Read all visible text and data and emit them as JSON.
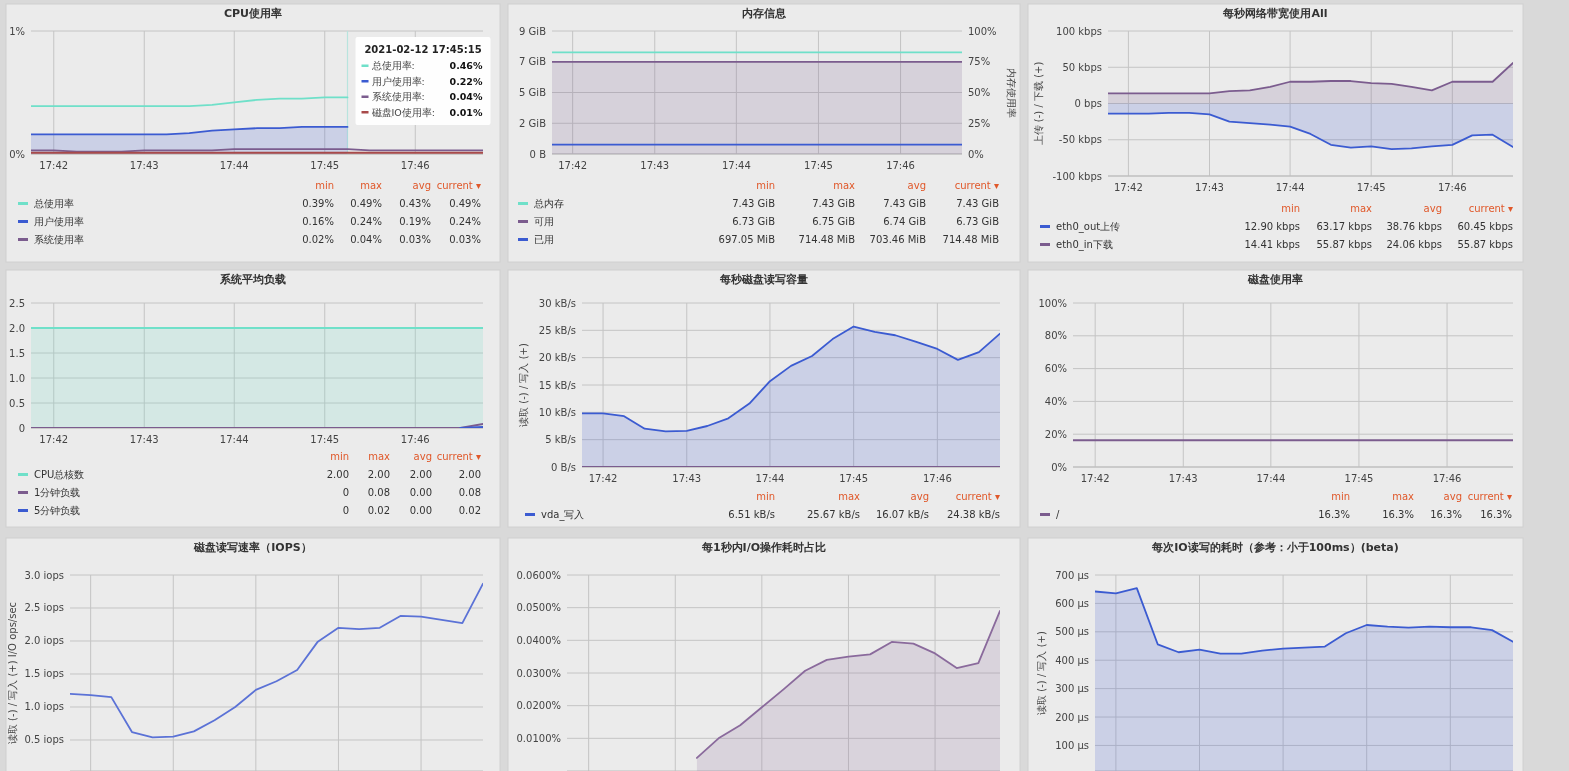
{
  "chart_data": [
    {
      "type": "line",
      "title": "CPU使用率",
      "legend": "bottom",
      "grid": true,
      "x": [
        17.6958,
        17.7,
        17.7042,
        17.7083,
        17.7125,
        17.7167,
        17.7208,
        17.725,
        17.7292,
        17.7333,
        17.7375,
        17.7417,
        17.7458,
        17.75,
        17.7542,
        17.7583,
        17.7625,
        17.7667,
        17.7708,
        17.775,
        17.7792
      ],
      "xlim": [
        17.6958,
        17.7792
      ],
      "xticks": [
        {
          "value": 17.7,
          "label": "17:42"
        },
        {
          "value": 17.7167,
          "label": "17:43"
        },
        {
          "value": 17.7333,
          "label": "17:44"
        },
        {
          "value": 17.75,
          "label": "17:45"
        },
        {
          "value": 17.7667,
          "label": "17:46"
        }
      ],
      "ylim": [
        0,
        1
      ],
      "yticks": [
        {
          "value": 0,
          "label": "0%"
        },
        {
          "value": 1,
          "label": "1%"
        }
      ],
      "ref_lines": [
        {
          "axis": "x",
          "value": 17.7542,
          "color": "#b8e4de"
        }
      ],
      "series": [
        {
          "name": "总使用率",
          "color": "#6fe0c9",
          "values": [
            0.39,
            0.39,
            0.39,
            0.39,
            0.39,
            0.39,
            0.39,
            0.39,
            0.4,
            0.42,
            0.44,
            0.45,
            0.45,
            0.46,
            0.46,
            null,
            null,
            null,
            null,
            null,
            null
          ]
        },
        {
          "name": "用户使用率",
          "type": "area",
          "color": "#3b5bd1",
          "values": [
            0.16,
            0.16,
            0.16,
            0.16,
            0.16,
            0.16,
            0.16,
            0.17,
            0.19,
            0.2,
            0.21,
            0.21,
            0.22,
            0.22,
            0.22,
            null,
            null,
            null,
            null,
            null,
            null
          ]
        },
        {
          "name": "系统使用率",
          "color": "#7b5c8e",
          "values": [
            0.03,
            0.03,
            0.02,
            0.02,
            0.02,
            0.03,
            0.03,
            0.03,
            0.03,
            0.04,
            0.04,
            0.04,
            0.04,
            0.04,
            0.04,
            0.03,
            0.03,
            0.03,
            0.03,
            0.03,
            0.03
          ]
        },
        {
          "color": "#a84a4a",
          "values": [
            0.01,
            0.01,
            0.01,
            0.01,
            0.01,
            0.01,
            0.01,
            0.01,
            0.01,
            0.01,
            0.01,
            0.01,
            0.01,
            0.01,
            0.01,
            0.01,
            0.01,
            0.01,
            0.01,
            0.01,
            0.01
          ]
        }
      ],
      "annotations": [
        "min",
        "max",
        "avg",
        "current ▾",
        "0.39%",
        "0.49%",
        "0.43%",
        "0.49%",
        "0.16%",
        "0.24%",
        "0.19%",
        "0.24%",
        "0.02%",
        "0.04%",
        "0.03%",
        "0.03%",
        "2021-02-12 17:45:15",
        "总使用率:",
        "0.46%",
        "用户使用率:",
        "0.22%",
        "系统使用率:",
        "0.04%",
        "磁盘IO使用率:",
        "0.01%"
      ]
    },
    {
      "type": "line",
      "title": "内存信息",
      "legend": "bottom",
      "grid": true,
      "y2label": "内存使用率",
      "x": [
        17.6958,
        17.7,
        17.7042,
        17.7083,
        17.7125,
        17.7167,
        17.7208,
        17.725,
        17.7292,
        17.7333,
        17.7375,
        17.7417,
        17.7458,
        17.75,
        17.7542,
        17.7583,
        17.7625,
        17.7667,
        17.7708,
        17.775,
        17.7792
      ],
      "xlim": [
        17.6958,
        17.7792
      ],
      "xticks": [
        {
          "value": 17.7,
          "label": "17:42"
        },
        {
          "value": 17.7167,
          "label": "17:43"
        },
        {
          "value": 17.7333,
          "label": "17:44"
        },
        {
          "value": 17.75,
          "label": "17:45"
        },
        {
          "value": 17.7667,
          "label": "17:46"
        }
      ],
      "ylim": [
        0,
        9
      ],
      "yticks": [
        {
          "value": 0,
          "label": "0 B"
        },
        {
          "value": 2.25,
          "label": "2 GiB"
        },
        {
          "value": 4.5,
          "label": "5 GiB"
        },
        {
          "value": 6.75,
          "label": "7 GiB"
        },
        {
          "value": 9,
          "label": "9 GiB"
        }
      ],
      "y2lim": [
        0,
        100
      ],
      "y2ticks": [
        {
          "value": 0,
          "label": "0%"
        },
        {
          "value": 25,
          "label": "25%"
        },
        {
          "value": 50,
          "label": "50%"
        },
        {
          "value": 75,
          "label": "75%"
        },
        {
          "value": 100,
          "label": "100%"
        }
      ],
      "series": [
        {
          "name": "总内存",
          "color": "#6fe0c9",
          "values": [
            7.43,
            7.43,
            7.43,
            7.43,
            7.43,
            7.43,
            7.43,
            7.43,
            7.43,
            7.43,
            7.43,
            7.43,
            7.43,
            7.43,
            7.43,
            7.43,
            7.43,
            7.43,
            7.43,
            7.43,
            7.43
          ]
        },
        {
          "name": "可用",
          "type": "area",
          "color": "#7b5c8e",
          "values": [
            6.74,
            6.74,
            6.74,
            6.74,
            6.74,
            6.74,
            6.74,
            6.74,
            6.74,
            6.74,
            6.74,
            6.74,
            6.74,
            6.74,
            6.74,
            6.74,
            6.74,
            6.74,
            6.74,
            6.74,
            6.74
          ]
        },
        {
          "name": "已用",
          "color": "#3b5bd1",
          "values": [
            0.69,
            0.69,
            0.69,
            0.69,
            0.69,
            0.69,
            0.69,
            0.69,
            0.69,
            0.69,
            0.69,
            0.69,
            0.69,
            0.69,
            0.69,
            0.69,
            0.69,
            0.69,
            0.69,
            0.69,
            0.69
          ]
        }
      ],
      "annotations": [
        "min",
        "max",
        "avg",
        "current ▾",
        "7.43 GiB",
        "7.43 GiB",
        "7.43 GiB",
        "7.43 GiB",
        "6.73 GiB",
        "6.75 GiB",
        "6.74 GiB",
        "6.73 GiB",
        "697.05 MiB",
        "714.48 MiB",
        "703.46 MiB",
        "714.48 MiB"
      ]
    },
    {
      "type": "area",
      "title": "每秒网络带宽使用All",
      "legend": "bottom",
      "grid": true,
      "ylabel": "上传 (-) / 下载 (+)",
      "x": [
        17.6958,
        17.7,
        17.7042,
        17.7083,
        17.7125,
        17.7167,
        17.7208,
        17.725,
        17.7292,
        17.7333,
        17.7375,
        17.7417,
        17.7458,
        17.75,
        17.7542,
        17.7583,
        17.7625,
        17.7667,
        17.7708,
        17.775,
        17.7792
      ],
      "xlim": [
        17.6958,
        17.7792
      ],
      "xticks": [
        {
          "value": 17.7,
          "label": "17:42"
        },
        {
          "value": 17.7167,
          "label": "17:43"
        },
        {
          "value": 17.7333,
          "label": "17:44"
        },
        {
          "value": 17.75,
          "label": "17:45"
        },
        {
          "value": 17.7667,
          "label": "17:46"
        }
      ],
      "ylim": [
        -100,
        100
      ],
      "yticks": [
        {
          "value": -100,
          "label": "-100 kbps"
        },
        {
          "value": -50,
          "label": "-50 kbps"
        },
        {
          "value": 0,
          "label": "0 bps"
        },
        {
          "value": 50,
          "label": "50 kbps"
        },
        {
          "value": 100,
          "label": "100 kbps"
        }
      ],
      "series": [
        {
          "name": "eth0_out上传",
          "color": "#3b5bd1",
          "values": [
            -14,
            -14,
            -14,
            -13,
            -13,
            -15,
            -25,
            -27,
            -29,
            -32,
            -42,
            -57,
            -61,
            -59,
            -63,
            -62,
            -59,
            -57,
            -44,
            -43,
            -60
          ]
        },
        {
          "name": "eth0_in下载",
          "color": "#7b5c8e",
          "values": [
            14,
            14,
            14,
            14,
            14,
            14,
            17,
            18,
            23,
            30,
            30,
            31,
            31,
            28,
            27,
            23,
            18,
            30,
            30,
            30,
            56
          ]
        }
      ],
      "annotations": [
        "min",
        "max",
        "avg",
        "current ▾",
        "12.90 kbps",
        "63.17 kbps",
        "38.76 kbps",
        "60.45 kbps",
        "14.41 kbps",
        "55.87 kbps",
        "24.06 kbps",
        "55.87 kbps"
      ]
    },
    {
      "type": "line",
      "title": "系统平均负载",
      "legend": "bottom",
      "grid": true,
      "x": [
        17.6958,
        17.7,
        17.7042,
        17.7083,
        17.7125,
        17.7167,
        17.7208,
        17.725,
        17.7292,
        17.7333,
        17.7375,
        17.7417,
        17.7458,
        17.75,
        17.7542,
        17.7583,
        17.7625,
        17.7667,
        17.7708,
        17.775,
        17.7792
      ],
      "xlim": [
        17.6958,
        17.7792
      ],
      "xticks": [
        {
          "value": 17.7,
          "label": "17:42"
        },
        {
          "value": 17.7167,
          "label": "17:43"
        },
        {
          "value": 17.7333,
          "label": "17:44"
        },
        {
          "value": 17.75,
          "label": "17:45"
        },
        {
          "value": 17.7667,
          "label": "17:46"
        }
      ],
      "ylim": [
        0,
        2.5
      ],
      "yticks": [
        0,
        0.5,
        {
          "value": 1,
          "label": "1.0"
        },
        1.5,
        {
          "value": 2,
          "label": "2.0"
        },
        2.5
      ],
      "series": [
        {
          "name": "CPU总核数",
          "type": "area",
          "color": "#6fe0c9",
          "values": [
            2,
            2,
            2,
            2,
            2,
            2,
            2,
            2,
            2,
            2,
            2,
            2,
            2,
            2,
            2,
            2,
            2,
            2,
            2,
            2,
            2
          ]
        },
        {
          "name": "1分钟负载",
          "color": "#7b5c8e",
          "values": [
            0,
            0,
            0,
            0,
            0,
            0,
            0,
            0,
            0,
            0,
            0,
            0,
            0,
            0,
            0,
            0,
            0,
            0,
            0,
            0,
            0.08
          ]
        },
        {
          "name": "5分钟负载",
          "color": "#3b5bd1",
          "values": [
            null,
            null,
            null,
            null,
            null,
            null,
            null,
            null,
            null,
            null,
            null,
            null,
            null,
            null,
            null,
            null,
            null,
            null,
            null,
            0,
            0.02
          ]
        }
      ],
      "annotations": [
        "min",
        "max",
        "avg",
        "current ▾",
        "2.00",
        "2.00",
        "2.00",
        "2.00",
        "0",
        "0.08",
        "0.00",
        "0.08",
        "0",
        "0.02",
        "0.00",
        "0.02"
      ]
    },
    {
      "type": "line",
      "title": "每秒磁盘读写容量",
      "legend": "bottom",
      "grid": true,
      "ylabel": "读取 (-) / 写入 (+)",
      "x": [
        17.6958,
        17.7,
        17.7042,
        17.7083,
        17.7125,
        17.7167,
        17.7208,
        17.725,
        17.7292,
        17.7333,
        17.7375,
        17.7417,
        17.7458,
        17.75,
        17.7542,
        17.7583,
        17.7625,
        17.7667,
        17.7708,
        17.775,
        17.7792
      ],
      "xlim": [
        17.6958,
        17.7792
      ],
      "xticks": [
        {
          "value": 17.7,
          "label": "17:42"
        },
        {
          "value": 17.7167,
          "label": "17:43"
        },
        {
          "value": 17.7333,
          "label": "17:44"
        },
        {
          "value": 17.75,
          "label": "17:45"
        },
        {
          "value": 17.7667,
          "label": "17:46"
        }
      ],
      "ylim": [
        0,
        30
      ],
      "yticks": [
        {
          "value": 0,
          "label": "0 B/s"
        },
        {
          "value": 5,
          "label": "5 kB/s"
        },
        {
          "value": 10,
          "label": "10 kB/s"
        },
        {
          "value": 15,
          "label": "15 kB/s"
        },
        {
          "value": 20,
          "label": "20 kB/s"
        },
        {
          "value": 25,
          "label": "25 kB/s"
        },
        {
          "value": 30,
          "label": "30 kB/s"
        }
      ],
      "series": [
        {
          "name": "vda_写入",
          "type": "area",
          "color": "#3b5bd1",
          "values": [
            9.8,
            9.8,
            9.3,
            7.0,
            6.5,
            6.6,
            7.5,
            8.9,
            11.6,
            15.7,
            18.5,
            20.3,
            23.4,
            25.7,
            24.7,
            24.1,
            22.9,
            21.6,
            19.6,
            21.0,
            24.4
          ]
        },
        {
          "color": "#7b5c8e",
          "values": [
            0,
            0,
            0,
            0,
            0,
            0,
            0,
            0,
            0,
            0,
            0,
            0,
            0,
            0,
            0,
            0,
            0,
            0,
            0,
            0,
            0
          ]
        }
      ],
      "annotations": [
        "min",
        "max",
        "avg",
        "current ▾",
        "6.51 kB/s",
        "25.67 kB/s",
        "16.07 kB/s",
        "24.38 kB/s"
      ]
    },
    {
      "type": "line",
      "title": "磁盘使用率",
      "legend": "bottom",
      "grid": true,
      "x": [
        17.6958,
        17.7,
        17.7042,
        17.7083,
        17.7125,
        17.7167,
        17.7208,
        17.725,
        17.7292,
        17.7333,
        17.7375,
        17.7417,
        17.7458,
        17.75,
        17.7542,
        17.7583,
        17.7625,
        17.7667,
        17.7708,
        17.775,
        17.7792
      ],
      "xlim": [
        17.6958,
        17.7792
      ],
      "xticks": [
        {
          "value": 17.7,
          "label": "17:42"
        },
        {
          "value": 17.7167,
          "label": "17:43"
        },
        {
          "value": 17.7333,
          "label": "17:44"
        },
        {
          "value": 17.75,
          "label": "17:45"
        },
        {
          "value": 17.7667,
          "label": "17:46"
        }
      ],
      "ylim": [
        0,
        100
      ],
      "yticks": [
        {
          "value": 0,
          "label": "0%"
        },
        {
          "value": 20,
          "label": "20%"
        },
        {
          "value": 40,
          "label": "40%"
        },
        {
          "value": 60,
          "label": "60%"
        },
        {
          "value": 80,
          "label": "80%"
        },
        {
          "value": 100,
          "label": "100%"
        }
      ],
      "series": [
        {
          "name": "/",
          "color": "#7b5c8e",
          "values": [
            16.3,
            16.3,
            16.3,
            16.3,
            16.3,
            16.3,
            16.3,
            16.3,
            16.3,
            16.3,
            16.3,
            16.3,
            16.3,
            16.3,
            16.3,
            16.3,
            16.3,
            16.3,
            16.3,
            16.3,
            16.3
          ]
        }
      ],
      "annotations": [
        "min",
        "max",
        "avg",
        "current ▾",
        "16.3%",
        "16.3%",
        "16.3%",
        "16.3%"
      ]
    },
    {
      "type": "line",
      "title": "磁盘读写速率（IOPS）",
      "grid": true,
      "ylabel": "读取 (-) / 写入 (+)  I/O ops/sec",
      "categories": [
        null,
        null,
        null,
        null,
        null,
        null,
        null,
        null,
        null,
        null,
        null,
        null,
        null,
        null,
        null,
        null,
        null,
        null,
        null,
        null,
        null
      ],
      "ylim": [
        0.03,
        3.0
      ],
      "yticks": [
        {
          "value": 0.5,
          "label": "0.5 iops"
        },
        {
          "value": 1,
          "label": "1.0 iops"
        },
        {
          "value": 1.5,
          "label": "1.5 iops"
        },
        {
          "value": 2,
          "label": "2.0 iops"
        },
        {
          "value": 2.5,
          "label": "2.5 iops"
        },
        {
          "value": 3,
          "label": "3.0 iops"
        }
      ],
      "series": [
        {
          "color": "#5b72d6",
          "values": [
            1.2,
            1.18,
            1.15,
            0.62,
            0.54,
            0.55,
            0.63,
            0.8,
            1.0,
            1.26,
            1.39,
            1.56,
            1.99,
            2.2,
            2.18,
            2.2,
            2.38,
            2.37,
            2.32,
            2.27,
            2.87
          ]
        }
      ]
    },
    {
      "type": "area",
      "title": "每1秒内I/O操作耗时占比",
      "grid": true,
      "categories": [
        null,
        null,
        null,
        null,
        null,
        null,
        null,
        null,
        null,
        null,
        null,
        null,
        null,
        null,
        null,
        null,
        null,
        null,
        null,
        null,
        null
      ],
      "ylim": [
        0,
        0.06
      ],
      "yticks": [
        {
          "value": 0.01,
          "label": "0.0100%"
        },
        {
          "value": 0.02,
          "label": "0.0200%"
        },
        {
          "value": 0.03,
          "label": "0.0300%"
        },
        {
          "value": 0.04,
          "label": "0.0400%"
        },
        {
          "value": 0.05,
          "label": "0.0500%"
        },
        {
          "value": 0.06,
          "label": "0.0600%"
        }
      ],
      "series": [
        {
          "color": "#8a6a9c",
          "values": [
            null,
            null,
            null,
            null,
            null,
            null,
            0.004,
            0.01,
            0.014,
            0.0195,
            0.025,
            0.0307,
            0.034,
            0.035,
            0.0357,
            0.0395,
            0.039,
            0.036,
            0.0315,
            0.033,
            0.049
          ]
        }
      ]
    },
    {
      "type": "area",
      "title": "每次IO读写的耗时（参考：小于100ms）(beta)",
      "grid": true,
      "ylabel": "读取 (-) / 写入 (+)",
      "categories": [
        null,
        null,
        null,
        null,
        null,
        null,
        null,
        null,
        null,
        null,
        null,
        null,
        null,
        null,
        null,
        null,
        null,
        null,
        null,
        null,
        null
      ],
      "ylim": [
        10,
        700
      ],
      "yticks": [
        {
          "value": 100,
          "label": "100 μs"
        },
        {
          "value": 200,
          "label": "200 μs"
        },
        {
          "value": 300,
          "label": "300 μs"
        },
        {
          "value": 400,
          "label": "400 μs"
        },
        {
          "value": 500,
          "label": "500 μs"
        },
        {
          "value": 600,
          "label": "600 μs"
        },
        {
          "value": 700,
          "label": "700 μs"
        }
      ],
      "series": [
        {
          "color": "#3b5bd1",
          "values": [
            642,
            635,
            654,
            456,
            428,
            437,
            423,
            423,
            434,
            441,
            444,
            448,
            495,
            524,
            518,
            515,
            518,
            516,
            516,
            506,
            465
          ]
        }
      ]
    }
  ]
}
